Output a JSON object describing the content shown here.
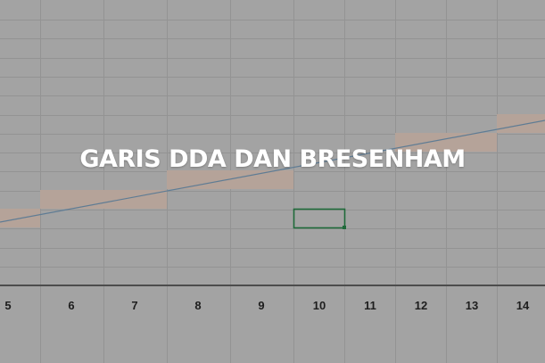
{
  "title": "GARIS DDA DAN BRESENHAM",
  "columns": [
    "5",
    "6",
    "7",
    "8",
    "9",
    "10",
    "11",
    "12",
    "13",
    "14"
  ],
  "colors": {
    "background": "#a3a3a3",
    "gridline": "#939393",
    "pixel_fill": "#b5a399",
    "line": "#5f7c94",
    "selection": "#1f6a3a",
    "axis": "#4d4d4d"
  }
}
